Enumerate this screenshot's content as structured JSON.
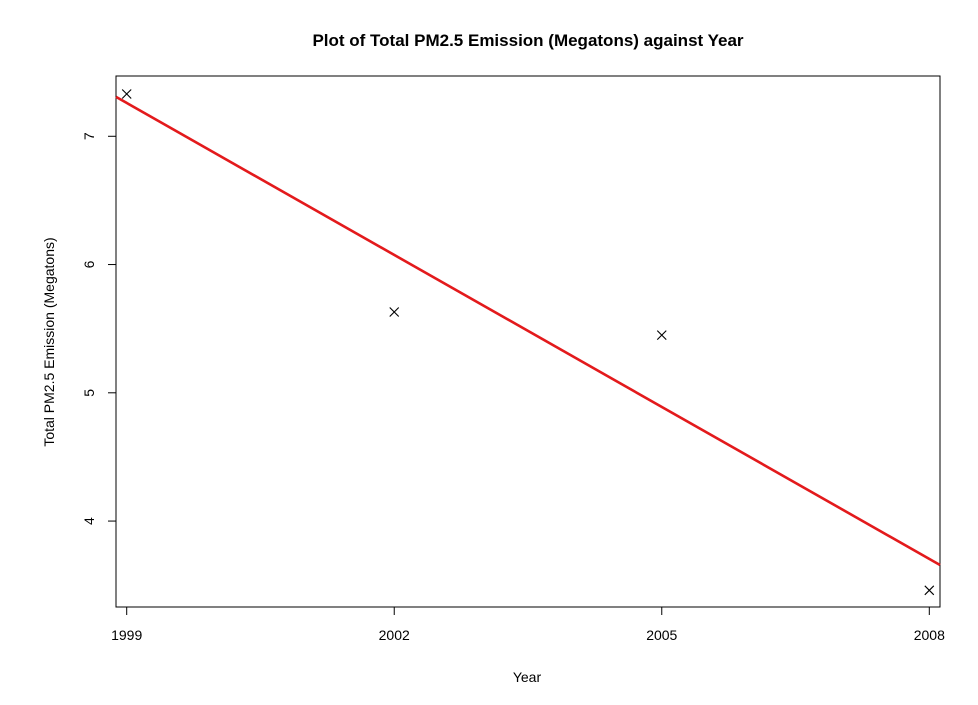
{
  "chart_data": {
    "type": "scatter",
    "title": "Plot of Total PM2.5 Emission (Megatons) against Year",
    "xlabel": "Year",
    "ylabel": "Total PM2.5 Emission (Megatons)",
    "xlim": [
      1998.88,
      2008.12
    ],
    "ylim": [
      3.33,
      7.47
    ],
    "x_ticks": [
      1999,
      2002,
      2005,
      2008
    ],
    "y_ticks": [
      4,
      5,
      6,
      7
    ],
    "grid": false,
    "legend": "none",
    "points": {
      "marker": "x",
      "color": "#000000",
      "x": [
        1999,
        2002,
        2005,
        2008
      ],
      "y": [
        7.33,
        5.63,
        5.45,
        3.46
      ]
    },
    "fit_line": {
      "color": "#e31a1c",
      "intercept_at_1999": 7.26,
      "slope_per_year": -0.395
    }
  }
}
